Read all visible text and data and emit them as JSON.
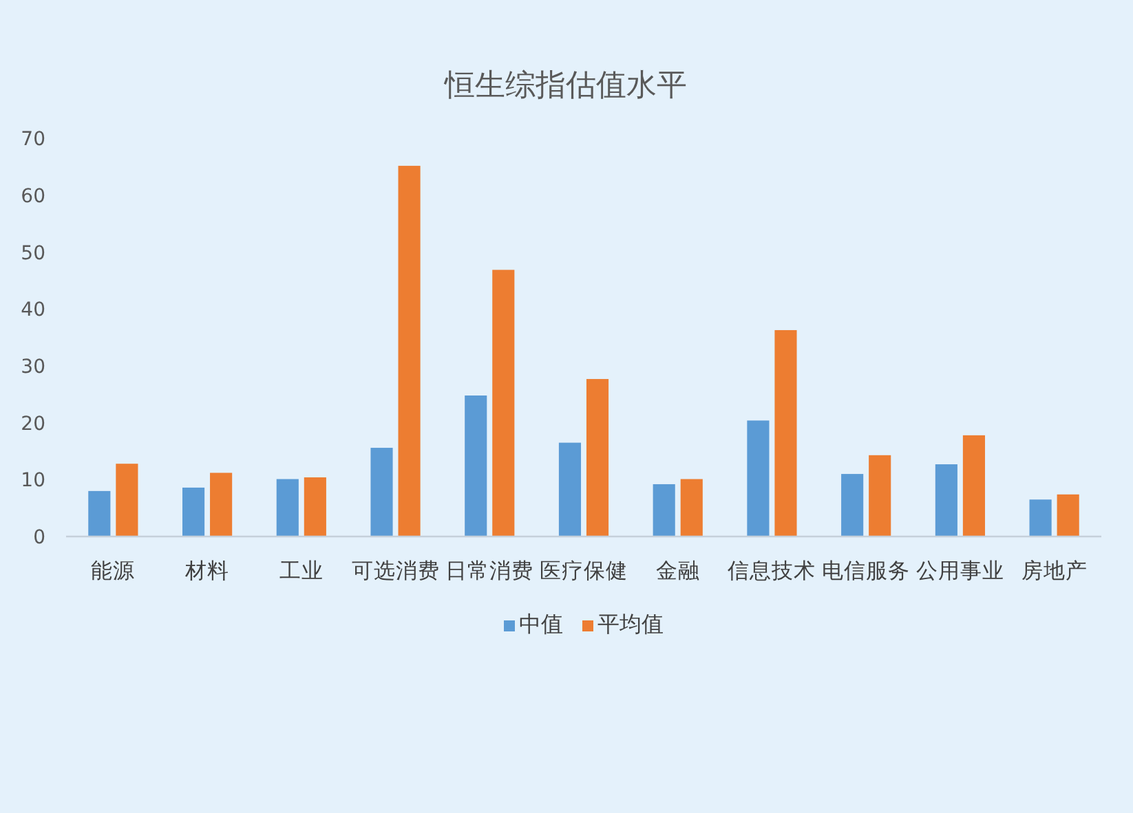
{
  "chart_data": {
    "type": "bar",
    "title": "恒生综指估值水平",
    "categories": [
      "能源",
      "材料",
      "工业",
      "可选消费",
      "日常消费",
      "医疗保健",
      "金融",
      "信息技术",
      "电信服务",
      "公用事业",
      "房地产"
    ],
    "series": [
      {
        "name": "中值",
        "color": "#5b9bd5",
        "values": [
          8.0,
          8.6,
          10.1,
          15.6,
          24.8,
          16.5,
          9.2,
          20.4,
          11.0,
          12.7,
          6.5
        ]
      },
      {
        "name": "平均值",
        "color": "#ed7d31",
        "values": [
          12.8,
          11.2,
          10.4,
          65.2,
          46.9,
          27.7,
          10.1,
          36.3,
          14.3,
          17.8,
          7.4
        ]
      }
    ],
    "ylim": [
      0,
      70
    ],
    "yticks": [
      0,
      10,
      20,
      30,
      40,
      50,
      60,
      70
    ],
    "legend": "bottom"
  }
}
